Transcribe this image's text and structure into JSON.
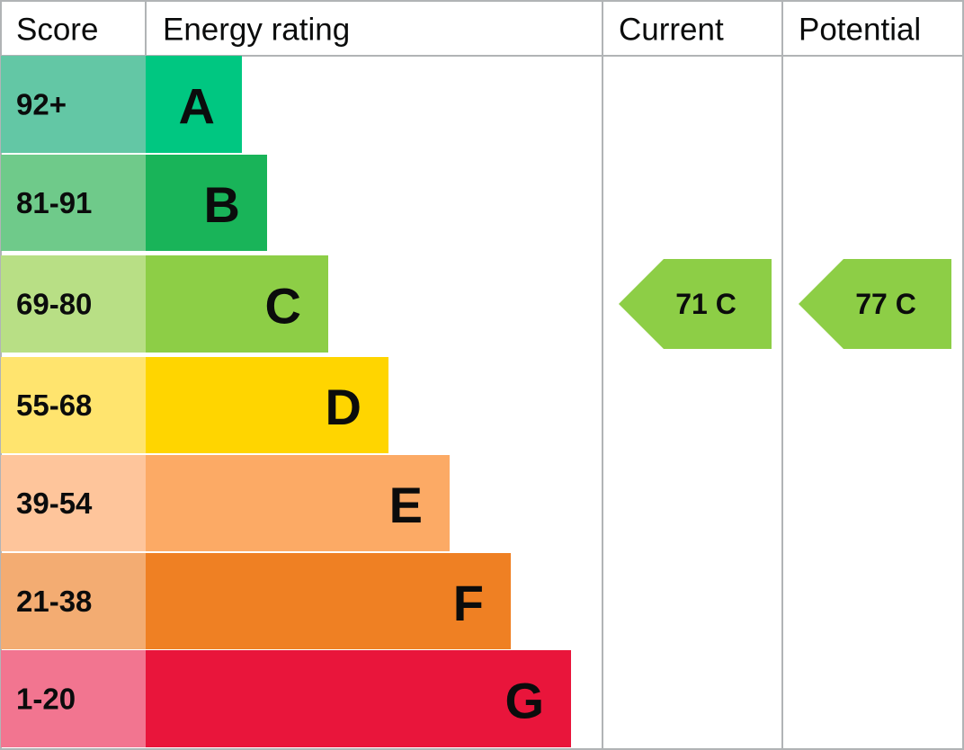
{
  "header": {
    "score": "Score",
    "energy_rating": "Energy rating",
    "current": "Current",
    "potential": "Potential"
  },
  "rows": [
    {
      "score": "92+",
      "rating": "A"
    },
    {
      "score": "81-91",
      "rating": "B"
    },
    {
      "score": "69-80",
      "rating": "C"
    },
    {
      "score": "55-68",
      "rating": "D"
    },
    {
      "score": "39-54",
      "rating": "E"
    },
    {
      "score": "21-38",
      "rating": "F"
    },
    {
      "score": "1-20",
      "rating": "G"
    }
  ],
  "current": {
    "label": "71 C"
  },
  "potential": {
    "label": "77 C"
  }
}
